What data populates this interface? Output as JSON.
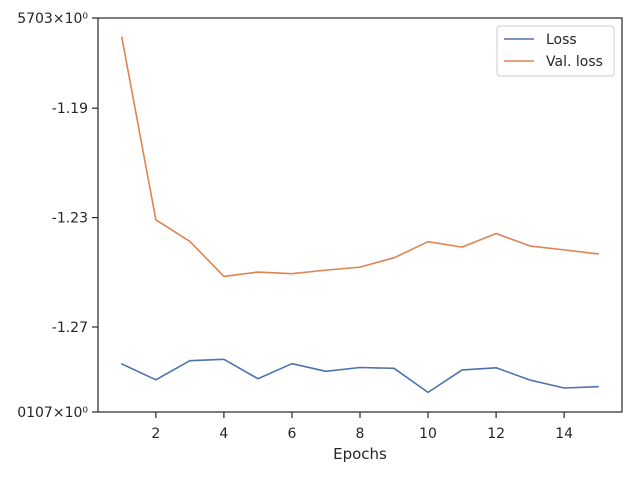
{
  "chart_data": {
    "type": "line",
    "title": "",
    "xlabel": "Epochs",
    "ylabel": "",
    "xlim": [
      0.3,
      15.7
    ],
    "ylim": [
      -1.30107,
      -1.15703
    ],
    "x_ticks": [
      2,
      4,
      6,
      8,
      10,
      12,
      14
    ],
    "y_tick_values": [
      -1.30107,
      -1.27,
      -1.23,
      -1.19,
      -1.15703
    ],
    "y_tick_labels": [
      "0107×10⁰",
      "-1.27",
      "-1.23",
      "-1.19",
      "5703×10⁰"
    ],
    "grid": false,
    "legend_position": "top-right",
    "x": [
      1,
      2,
      3,
      4,
      5,
      6,
      7,
      8,
      9,
      10,
      11,
      12,
      13,
      14,
      15
    ],
    "series": [
      {
        "name": "Loss",
        "color": "#4c72b0",
        "values": [
          -1.2835,
          -1.2893,
          -1.2823,
          -1.2818,
          -1.2889,
          -1.2834,
          -1.2862,
          -1.2848,
          -1.2851,
          -1.2939,
          -1.2857,
          -1.2849,
          -1.2894,
          -1.2923,
          -1.2918
        ]
      },
      {
        "name": "Val. loss",
        "color": "#dd8452",
        "values": [
          -1.1641,
          -1.2308,
          -1.2387,
          -1.2515,
          -1.2499,
          -1.2505,
          -1.2492,
          -1.2481,
          -1.2447,
          -1.2388,
          -1.2408,
          -1.2358,
          -1.2404,
          -1.2418,
          -1.2433
        ]
      }
    ]
  }
}
